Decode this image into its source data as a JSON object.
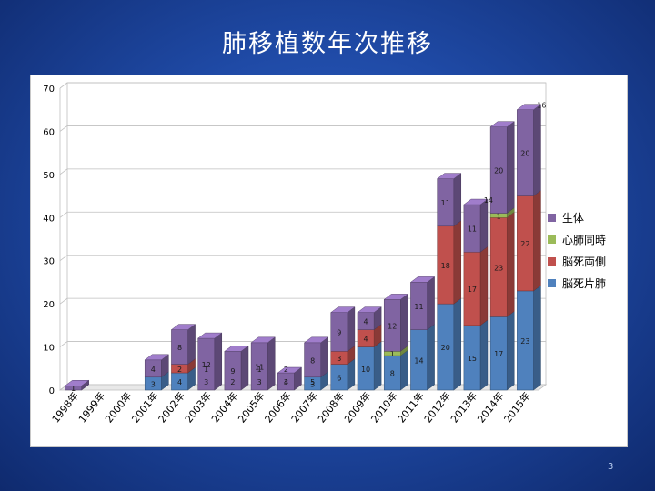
{
  "slide": {
    "title": "肺移植数年次推移",
    "page_number": "3"
  },
  "chart_data": {
    "type": "bar",
    "stacked": true,
    "style": "3d",
    "title": "",
    "xlabel": "",
    "ylabel": "",
    "ylim": [
      0,
      70
    ],
    "yticks": [
      0,
      10,
      20,
      30,
      40,
      50,
      60,
      70
    ],
    "grid": true,
    "legend_position": "right",
    "categories": [
      "1998年",
      "1999年",
      "2000年",
      "2001年",
      "2002年",
      "2003年",
      "2004年",
      "2005年",
      "2006年",
      "2007年",
      "2008年",
      "2009年",
      "2010年",
      "2011年",
      "2012年",
      "2013年",
      "2014年",
      "2015年"
    ],
    "series": [
      {
        "name": "脳死片肺",
        "color": "#4f81bd",
        "values": [
          0,
          0,
          0,
          3,
          4,
          0,
          0,
          0,
          0,
          3,
          6,
          10,
          8,
          14,
          20,
          15,
          17,
          23
        ],
        "labels": [
          "",
          "",
          "",
          "3",
          "4",
          "",
          "",
          "",
          "",
          "3",
          "6",
          "10",
          "8",
          "14",
          "20",
          "15",
          "17",
          "23"
        ]
      },
      {
        "name": "脳死両側",
        "color": "#c0504d",
        "values": [
          0,
          0,
          0,
          0,
          2,
          0,
          0,
          0,
          0,
          0,
          3,
          4,
          0,
          0,
          18,
          17,
          23,
          22
        ],
        "labels": [
          "",
          "",
          "",
          "",
          "2",
          "",
          "",
          "",
          "",
          "",
          "3",
          "4",
          "",
          "",
          "18",
          "17",
          "23",
          "22"
        ]
      },
      {
        "name": "心肺同時",
        "color": "#9bbb59",
        "values": [
          0,
          0,
          0,
          0,
          0,
          0,
          0,
          0,
          0,
          0,
          0,
          0,
          1,
          0,
          0,
          0,
          1,
          0
        ],
        "labels": [
          "",
          "",
          "",
          "",
          "",
          "",
          "",
          "",
          "",
          "",
          "",
          "",
          "1",
          "",
          "",
          "",
          "1",
          ""
        ]
      },
      {
        "name": "生体",
        "color": "#8064a2",
        "values": [
          1,
          0,
          0,
          4,
          8,
          12,
          9,
          11,
          4,
          8,
          9,
          4,
          12,
          11,
          11,
          11,
          20,
          20
        ],
        "labels": [
          "1",
          "",
          "",
          "4",
          "8",
          "12",
          "9",
          "11",
          "4",
          "8",
          "9",
          "4",
          "12",
          "11",
          "11",
          "11",
          "20",
          "20"
        ]
      }
    ],
    "extra_labels": [
      {
        "category": "2003年",
        "text": "3"
      },
      {
        "category": "2003年",
        "text": "1"
      },
      {
        "category": "2004年",
        "text": "2"
      },
      {
        "category": "2005年",
        "text": "3"
      },
      {
        "category": "2005年",
        "text": "1"
      },
      {
        "category": "2006年",
        "text": "3"
      },
      {
        "category": "2006年",
        "text": "2"
      },
      {
        "category": "2007年",
        "text": "5"
      },
      {
        "category": "2013年",
        "text": "14"
      },
      {
        "category": "2015年",
        "text": "16"
      }
    ]
  }
}
